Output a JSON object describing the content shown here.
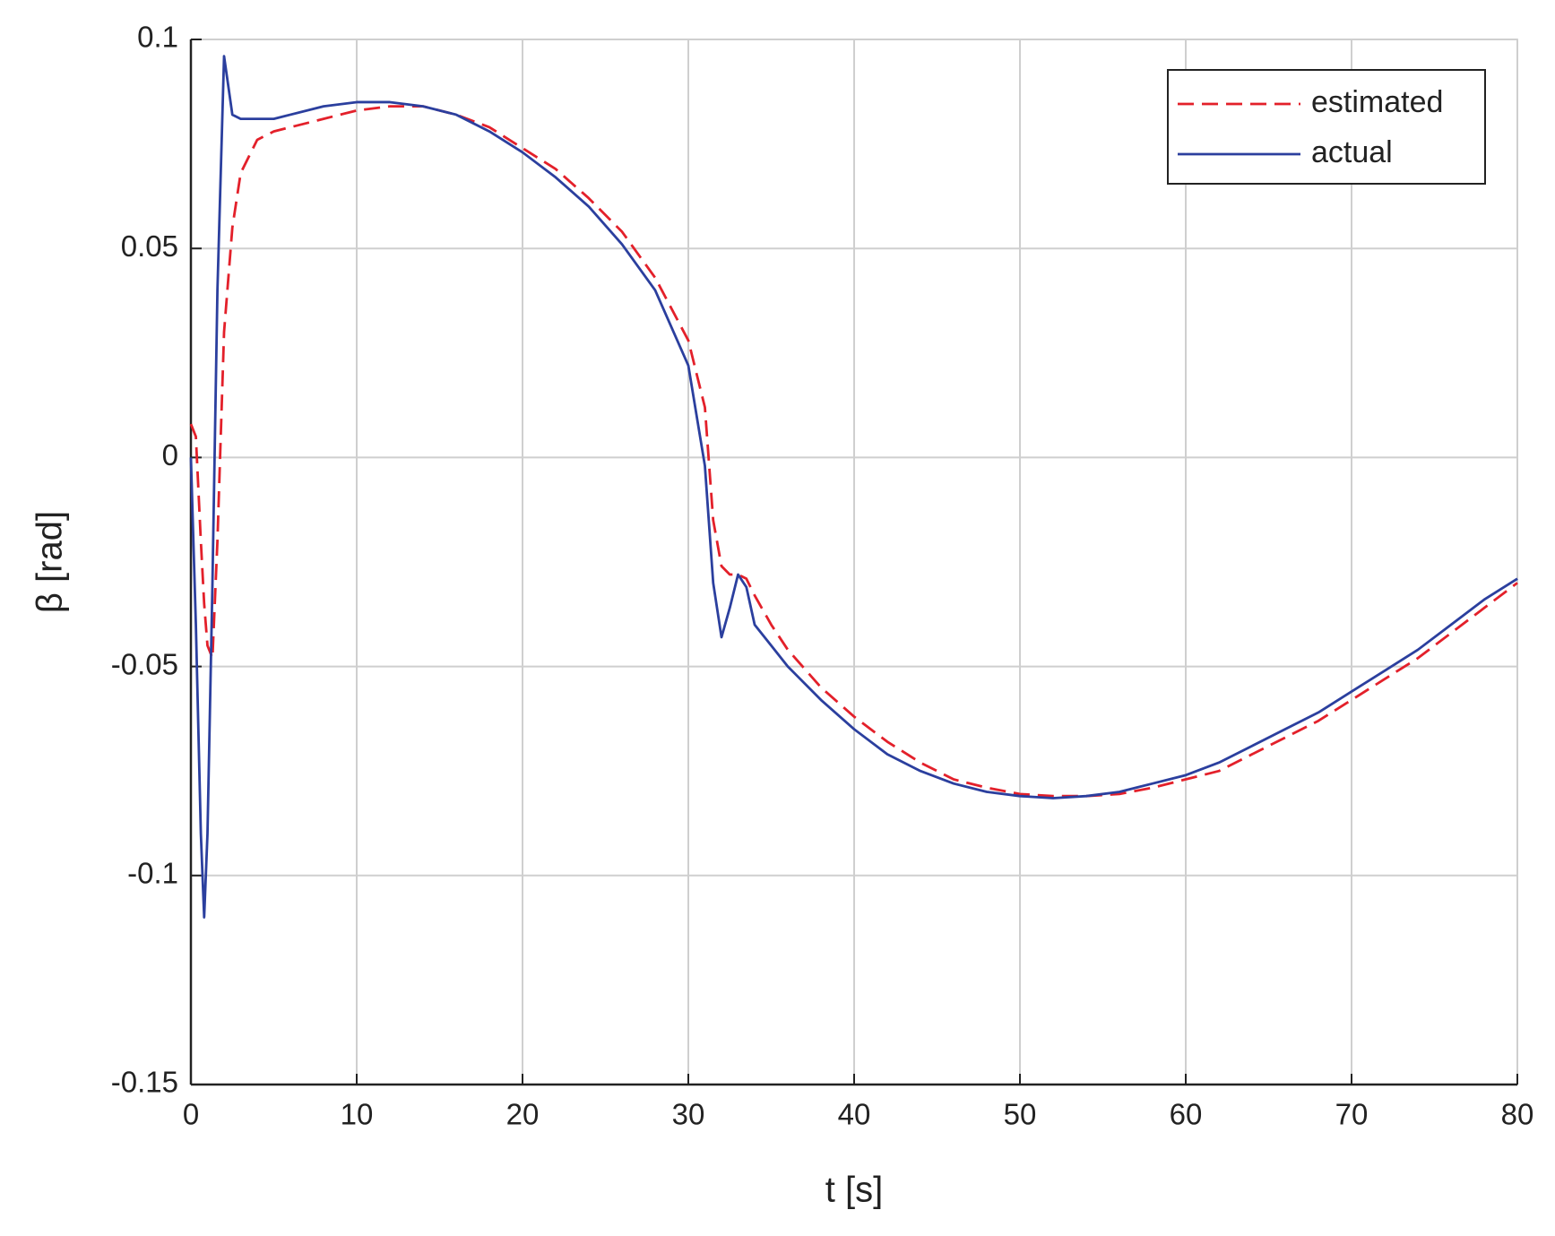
{
  "chart_data": {
    "type": "line",
    "x_label": "t [s]",
    "y_label": "β [rad]",
    "x": [
      0,
      0.3,
      0.6,
      0.8,
      1.0,
      1.3,
      1.6,
      2.0,
      2.5,
      3,
      4,
      5,
      6,
      8,
      10,
      12,
      14,
      16,
      18,
      20,
      22,
      24,
      26,
      28,
      30,
      31,
      31.5,
      32,
      32.5,
      33,
      33.5,
      34,
      35,
      36,
      38,
      40,
      42,
      44,
      46,
      48,
      50,
      52,
      54,
      56,
      58,
      60,
      62,
      64,
      66,
      68,
      70,
      72,
      74,
      76,
      78,
      80
    ],
    "series": [
      {
        "name": "estimated",
        "color": "#e3202a",
        "dashed": true,
        "values": [
          0.008,
          0.005,
          -0.02,
          -0.035,
          -0.045,
          -0.048,
          -0.02,
          0.03,
          0.055,
          0.068,
          0.076,
          0.078,
          0.079,
          0.081,
          0.083,
          0.084,
          0.084,
          0.082,
          0.079,
          0.074,
          0.069,
          0.062,
          0.054,
          0.043,
          0.028,
          0.012,
          -0.015,
          -0.026,
          -0.028,
          -0.028,
          -0.029,
          -0.033,
          -0.04,
          -0.046,
          -0.055,
          -0.062,
          -0.068,
          -0.073,
          -0.077,
          -0.079,
          -0.0805,
          -0.081,
          -0.081,
          -0.0805,
          -0.079,
          -0.077,
          -0.075,
          -0.071,
          -0.067,
          -0.063,
          -0.058,
          -0.053,
          -0.048,
          -0.042,
          -0.036,
          -0.03
        ]
      },
      {
        "name": "actual",
        "color": "#2b3f9e",
        "dashed": false,
        "values": [
          0,
          -0.04,
          -0.09,
          -0.11,
          -0.09,
          -0.03,
          0.04,
          0.096,
          0.082,
          0.081,
          0.081,
          0.081,
          0.082,
          0.084,
          0.085,
          0.085,
          0.084,
          0.082,
          0.078,
          0.073,
          0.067,
          0.06,
          0.051,
          0.04,
          0.022,
          -0.002,
          -0.03,
          -0.043,
          -0.036,
          -0.028,
          -0.031,
          -0.04,
          -0.045,
          -0.05,
          -0.058,
          -0.065,
          -0.071,
          -0.075,
          -0.078,
          -0.08,
          -0.081,
          -0.0815,
          -0.081,
          -0.08,
          -0.078,
          -0.076,
          -0.073,
          -0.069,
          -0.065,
          -0.061,
          -0.056,
          -0.051,
          -0.046,
          -0.04,
          -0.034,
          -0.029
        ]
      }
    ],
    "xlim": [
      0,
      80
    ],
    "xticks": [
      0,
      10,
      20,
      30,
      40,
      50,
      60,
      70,
      80
    ],
    "ylim": [
      -0.15,
      0.1
    ],
    "yticks": [
      -0.15,
      -0.1,
      -0.05,
      0,
      0.05,
      0.1
    ],
    "grid": true,
    "legend": "top-right"
  }
}
